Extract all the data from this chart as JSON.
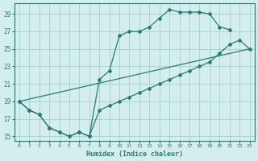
{
  "xlabel": "Humidex (Indice chaleur)",
  "bg_color": "#d4eeed",
  "grid_color": "#a8d4d0",
  "line_color": "#2a7a72",
  "xlim": [
    -0.5,
    23.5
  ],
  "ylim": [
    14.5,
    30.2
  ],
  "xticks": [
    0,
    1,
    2,
    3,
    4,
    5,
    6,
    7,
    8,
    9,
    10,
    11,
    12,
    13,
    14,
    15,
    16,
    17,
    18,
    19,
    20,
    21,
    22,
    23
  ],
  "yticks": [
    15,
    17,
    19,
    21,
    23,
    25,
    27,
    29
  ],
  "line1_x": [
    0,
    1,
    2,
    3,
    4,
    5,
    6,
    7,
    8,
    9,
    10,
    11,
    12,
    13,
    14,
    15,
    16,
    17,
    18,
    19,
    20,
    21
  ],
  "line1_y": [
    19,
    18,
    17.5,
    16,
    15.5,
    15,
    15.5,
    15,
    21.5,
    22.5,
    26.5,
    27,
    27,
    27.5,
    28.5,
    29.5,
    29.2,
    29.2,
    29.2,
    29.0,
    27.5,
    27.2
  ],
  "line2_x": [
    0,
    1,
    2,
    3,
    4,
    5,
    6,
    7,
    8,
    9,
    10,
    11,
    12,
    13,
    14,
    15,
    16,
    17,
    18,
    19,
    20,
    21,
    22,
    23
  ],
  "line2_y": [
    19,
    18,
    17.5,
    16,
    15.5,
    15,
    15.5,
    15,
    18.0,
    18.5,
    19.0,
    19.5,
    20.0,
    20.5,
    21.0,
    21.5,
    22.0,
    22.5,
    23.0,
    23.5,
    24.5,
    25.5,
    26.0,
    25.0
  ],
  "line3_x": [
    0,
    23
  ],
  "line3_y": [
    19.0,
    25.0
  ]
}
